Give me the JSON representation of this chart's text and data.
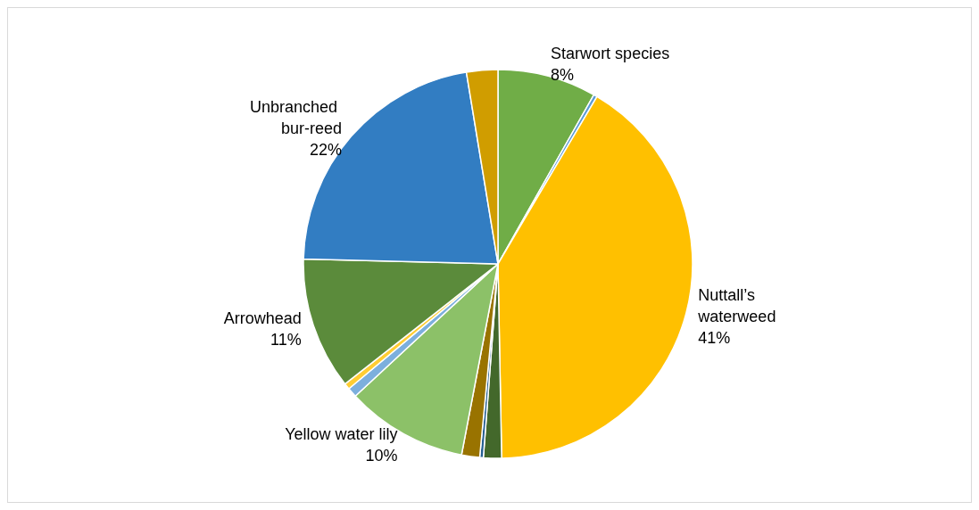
{
  "chart_data": {
    "type": "pie",
    "categories": [
      "Starwort species",
      null,
      "Nuttall’s waterweed",
      null,
      null,
      null,
      "Yellow water lily",
      null,
      null,
      "Arrowhead",
      "Unbranched bur-reed",
      null
    ],
    "values": [
      8.2,
      0.3,
      41.2,
      1.5,
      0.3,
      1.5,
      10.1,
      0.8,
      0.5,
      11,
      22,
      2.6
    ],
    "value_labels": [
      "8%",
      null,
      "41%",
      null,
      null,
      null,
      "10%",
      null,
      null,
      "11%",
      "22%",
      null
    ],
    "colors": [
      "#70ad47",
      "#5b9bd5",
      "#ffc000",
      "#43682b",
      "#255e91",
      "#997300",
      "#8cc168",
      "#7cafdd",
      "#ffcd33",
      "#5b8b3b",
      "#327dc2",
      "#d09d00"
    ],
    "legend": false
  }
}
